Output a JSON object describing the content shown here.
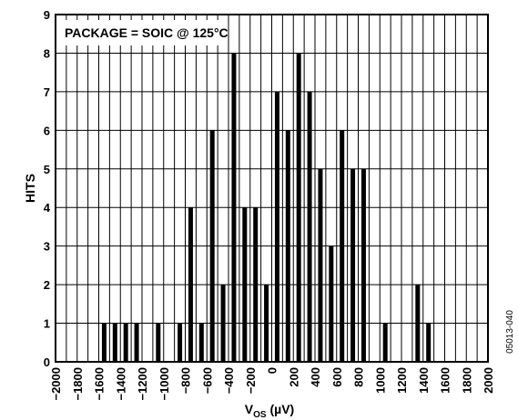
{
  "chart_data": {
    "type": "bar",
    "annotation": "PACKAGE = SOIC @ 125°C",
    "xlabel": {
      "main": "V",
      "sub": "OS",
      "unit": " (µV)"
    },
    "ylabel": "HITS",
    "figure_code": "05013-040",
    "xlim": [
      -2000,
      2000
    ],
    "ylim": [
      0,
      9
    ],
    "x_ticks": [
      "-2000",
      "-1800",
      "-1600",
      "-1400",
      "-1200",
      "-1000",
      "-800",
      "-600",
      "-400",
      "-200",
      "0",
      "200",
      "400",
      "600",
      "800",
      "1000",
      "1200",
      "1400",
      "1600",
      "1800",
      "2000"
    ],
    "y_ticks": [
      "0",
      "1",
      "2",
      "3",
      "4",
      "5",
      "6",
      "7",
      "8",
      "9"
    ],
    "grid": true,
    "x": [
      -1550,
      -1450,
      -1350,
      -1250,
      -1050,
      -850,
      -750,
      -650,
      -550,
      -450,
      -350,
      -250,
      -150,
      -50,
      50,
      150,
      250,
      350,
      450,
      550,
      650,
      750,
      850,
      1050,
      1350,
      1450
    ],
    "values": [
      1,
      1,
      1,
      1,
      1,
      1,
      4,
      1,
      6,
      2,
      8,
      4,
      4,
      2,
      7,
      6,
      8,
      7,
      5,
      3,
      6,
      5,
      5,
      1,
      2,
      1
    ]
  }
}
